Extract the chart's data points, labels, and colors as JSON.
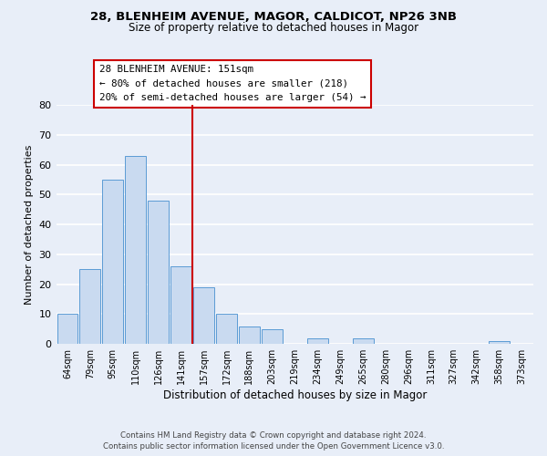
{
  "title": "28, BLENHEIM AVENUE, MAGOR, CALDICOT, NP26 3NB",
  "subtitle": "Size of property relative to detached houses in Magor",
  "xlabel": "Distribution of detached houses by size in Magor",
  "ylabel": "Number of detached properties",
  "bar_color": "#c9daf0",
  "bar_edge_color": "#5b9bd5",
  "categories": [
    "64sqm",
    "79sqm",
    "95sqm",
    "110sqm",
    "126sqm",
    "141sqm",
    "157sqm",
    "172sqm",
    "188sqm",
    "203sqm",
    "219sqm",
    "234sqm",
    "249sqm",
    "265sqm",
    "280sqm",
    "296sqm",
    "311sqm",
    "327sqm",
    "342sqm",
    "358sqm",
    "373sqm"
  ],
  "values": [
    10,
    25,
    55,
    63,
    48,
    26,
    19,
    10,
    6,
    5,
    0,
    2,
    0,
    2,
    0,
    0,
    0,
    0,
    0,
    1,
    0
  ],
  "ylim": [
    0,
    80
  ],
  "yticks": [
    0,
    10,
    20,
    30,
    40,
    50,
    60,
    70,
    80
  ],
  "vline_x_index": 6,
  "vline_color": "#cc0000",
  "annotation_title": "28 BLENHEIM AVENUE: 151sqm",
  "annotation_line1": "← 80% of detached houses are smaller (218)",
  "annotation_line2": "20% of semi-detached houses are larger (54) →",
  "annotation_box_color": "#ffffff",
  "annotation_box_edge": "#cc0000",
  "footer_line1": "Contains HM Land Registry data © Crown copyright and database right 2024.",
  "footer_line2": "Contains public sector information licensed under the Open Government Licence v3.0.",
  "background_color": "#e8eef8",
  "plot_background": "#e8eef8",
  "grid_color": "#ffffff"
}
